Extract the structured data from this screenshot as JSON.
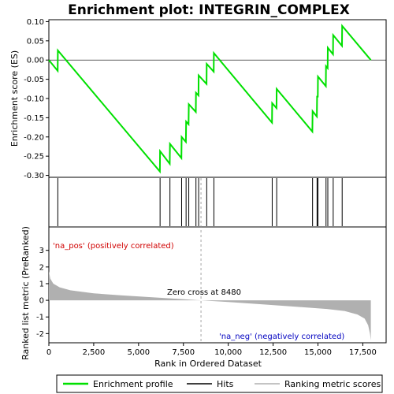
{
  "chart_data": {
    "type": "line",
    "title": "Enrichment plot: INTEGRIN_COMPLEX",
    "es_panel": {
      "ylabel": "Enrichment score (ES)",
      "ylim": [
        -0.305,
        0.105
      ],
      "yticks": [
        0.1,
        0.05,
        0.0,
        -0.05,
        -0.1,
        -0.15,
        -0.2,
        -0.25,
        -0.3
      ],
      "ytick_labels": [
        "0.10",
        "0.05",
        "0.00",
        "-0.05",
        "-0.10",
        "-0.15",
        "-0.20",
        "-0.25",
        "-0.30"
      ],
      "hits": [
        500,
        6200,
        6750,
        7400,
        7650,
        7800,
        8200,
        8350,
        8800,
        9200,
        12450,
        12700,
        14700,
        14950,
        15000,
        15450,
        15550,
        15850,
        16350
      ],
      "running_es": [
        [
          0,
          0.0
        ],
        [
          490,
          -0.028
        ],
        [
          500,
          0.025
        ],
        [
          6190,
          -0.29
        ],
        [
          6200,
          -0.237
        ],
        [
          6740,
          -0.27
        ],
        [
          6750,
          -0.218
        ],
        [
          7390,
          -0.255
        ],
        [
          7400,
          -0.2
        ],
        [
          7640,
          -0.213
        ],
        [
          7650,
          -0.16
        ],
        [
          7790,
          -0.167
        ],
        [
          7800,
          -0.115
        ],
        [
          8190,
          -0.135
        ],
        [
          8200,
          -0.085
        ],
        [
          8340,
          -0.092
        ],
        [
          8350,
          -0.04
        ],
        [
          8790,
          -0.062
        ],
        [
          8800,
          -0.01
        ],
        [
          9190,
          -0.03
        ],
        [
          9200,
          0.018
        ],
        [
          12440,
          -0.163
        ],
        [
          12450,
          -0.112
        ],
        [
          12690,
          -0.125
        ],
        [
          12700,
          -0.075
        ],
        [
          14690,
          -0.186
        ],
        [
          14700,
          -0.133
        ],
        [
          14940,
          -0.147
        ],
        [
          14950,
          -0.095
        ],
        [
          14990,
          -0.095
        ],
        [
          15000,
          -0.043
        ],
        [
          15440,
          -0.068
        ],
        [
          15450,
          -0.016
        ],
        [
          15540,
          -0.021
        ],
        [
          15550,
          0.032
        ],
        [
          15840,
          0.015
        ],
        [
          15850,
          0.065
        ],
        [
          16340,
          0.037
        ],
        [
          16350,
          0.089
        ],
        [
          17950,
          0.0
        ]
      ]
    },
    "rank_panel": {
      "ylabel": "Ranked list metric (PreRanked)",
      "ylim": [
        -2.55,
        3.6
      ],
      "yticks": [
        3,
        2,
        1,
        0,
        -1,
        -2
      ],
      "ytick_labels": [
        "3",
        "2",
        "1",
        "0",
        "-1",
        "-2"
      ],
      "xlabel": "Rank in Ordered Dataset",
      "xlim": [
        0,
        18800
      ],
      "xticks": [
        0,
        2500,
        5000,
        7500,
        10000,
        12500,
        15000,
        17500
      ],
      "xtick_labels": [
        "0",
        "2,500",
        "5,000",
        "7,500",
        "10,000",
        "12,500",
        "15,000",
        "17,500"
      ],
      "total_genes": 17950,
      "zero_cross": 8480,
      "zero_cross_label": "Zero cross at 8480",
      "pos_label": "'na_pos' (positively correlated)",
      "neg_label": "'na_neg' (negatively correlated)",
      "metric_curve": [
        [
          0,
          1.75
        ],
        [
          80,
          1.3
        ],
        [
          250,
          1.0
        ],
        [
          600,
          0.78
        ],
        [
          1200,
          0.6
        ],
        [
          2500,
          0.42
        ],
        [
          4000,
          0.3
        ],
        [
          5500,
          0.2
        ],
        [
          7000,
          0.1
        ],
        [
          8480,
          0.0
        ],
        [
          10000,
          -0.1
        ],
        [
          12000,
          -0.25
        ],
        [
          14000,
          -0.4
        ],
        [
          15500,
          -0.52
        ],
        [
          16500,
          -0.65
        ],
        [
          17200,
          -0.85
        ],
        [
          17600,
          -1.1
        ],
        [
          17800,
          -1.5
        ],
        [
          17900,
          -2.0
        ],
        [
          17950,
          -2.4
        ]
      ]
    },
    "colorbar_segments": [
      {
        "start": 0,
        "end": 450,
        "color": "#e8303a"
      },
      {
        "start": 450,
        "end": 3200,
        "color": "#f05a64"
      },
      {
        "start": 3200,
        "end": 4400,
        "color": "#f47a82"
      },
      {
        "start": 4400,
        "end": 6100,
        "color": "#f8a0a6"
      },
      {
        "start": 6100,
        "end": 7600,
        "color": "#fcc8d8"
      },
      {
        "start": 7600,
        "end": 9000,
        "color": "#f0d8f0"
      },
      {
        "start": 9000,
        "end": 10900,
        "color": "#dcdcf8"
      },
      {
        "start": 10900,
        "end": 12700,
        "color": "#c4c4f4"
      },
      {
        "start": 12700,
        "end": 14100,
        "color": "#a8a8ec"
      },
      {
        "start": 14100,
        "end": 15400,
        "color": "#8484e0"
      },
      {
        "start": 15400,
        "end": 17000,
        "color": "#6060d4"
      },
      {
        "start": 17000,
        "end": 17950,
        "color": "#2a10c0"
      }
    ],
    "colors": {
      "es_line": "#00e000",
      "hit": "#000000",
      "metric_fill": "#b0b0b0",
      "pos_text": "#d00000",
      "neg_text": "#0000c0",
      "zero_line": "#909090"
    },
    "legend": [
      {
        "label": "Enrichment profile",
        "color": "#00e000",
        "kind": "line"
      },
      {
        "label": "Hits",
        "color": "#000000",
        "kind": "line"
      },
      {
        "label": "Ranking metric scores",
        "color": "#b0b0b0",
        "kind": "line"
      }
    ]
  }
}
